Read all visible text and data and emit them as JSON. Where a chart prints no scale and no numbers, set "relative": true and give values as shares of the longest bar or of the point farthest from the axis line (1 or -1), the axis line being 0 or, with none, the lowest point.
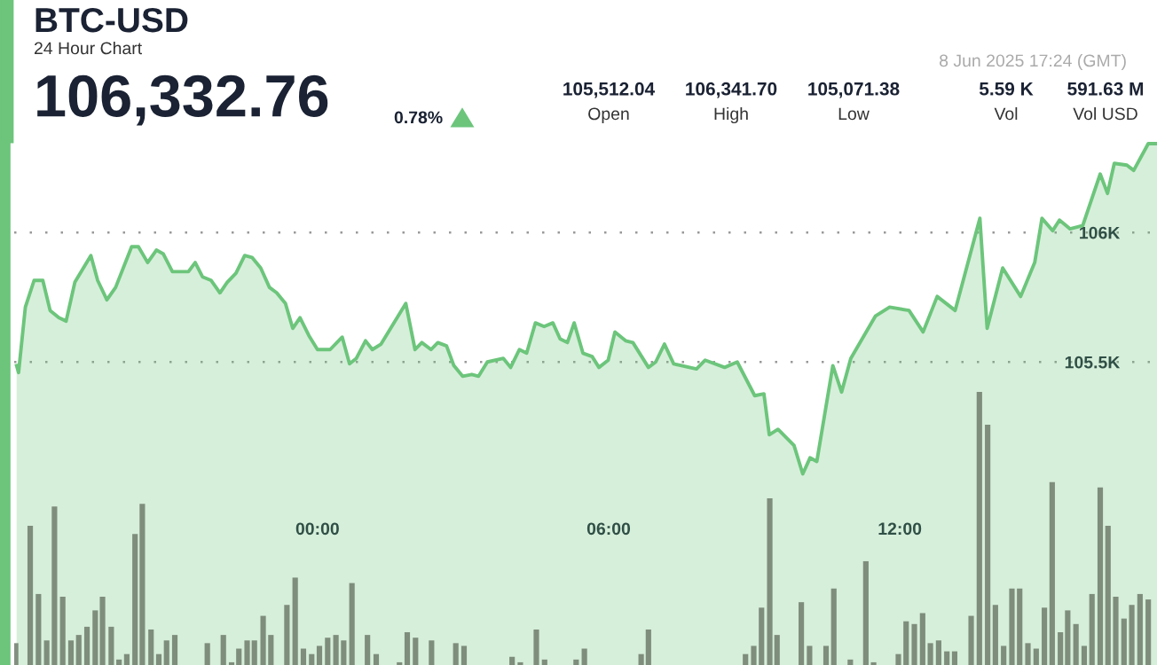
{
  "chart_data": [
    {
      "type": "area",
      "title": "BTC-USD",
      "subtitle": "24 Hour Chart",
      "annotations": [
        "106,332.76",
        "0.78%",
        "105,512.04",
        "Open",
        "106,341.70",
        "High",
        "105,071.38",
        "Low",
        "5.59 K",
        "Vol",
        "591.63 M",
        "Vol USD",
        "8 Jun 2025 17:24 (GMT)"
      ],
      "x": [
        -6.2,
        -6.16,
        -6.02,
        -5.84,
        -5.66,
        -5.51,
        -5.33,
        -5.18,
        -5.0,
        -4.67,
        -4.53,
        -4.34,
        -4.16,
        -3.83,
        -3.69,
        -3.5,
        -3.32,
        -3.18,
        -2.99,
        -2.66,
        -2.52,
        -2.37,
        -2.19,
        -2.01,
        -1.86,
        -1.68,
        -1.5,
        -1.35,
        -1.17,
        -0.99,
        -0.84,
        -0.66,
        -0.51,
        -0.36,
        -0.18,
        0.0,
        0.26,
        0.51,
        0.66,
        0.8,
        0.99,
        1.13,
        1.31,
        1.82,
        2.01,
        2.15,
        2.34,
        2.48,
        2.66,
        2.81,
        2.99,
        3.18,
        3.32,
        3.5,
        3.83,
        3.98,
        4.16,
        4.31,
        4.49,
        4.67,
        4.85,
        5.0,
        5.15,
        5.29,
        5.47,
        5.66,
        5.8,
        5.99,
        6.13,
        6.35,
        6.5,
        6.82,
        6.97,
        7.15,
        7.34,
        7.81,
        7.99,
        8.39,
        8.65,
        9.01,
        9.2,
        9.31,
        9.49,
        9.82,
        10.0,
        10.15,
        10.29,
        10.62,
        10.8,
        10.99,
        11.5,
        11.79,
        12.19,
        12.48,
        12.77,
        13.14,
        13.65,
        13.8,
        14.12,
        14.49,
        14.78,
        14.93,
        15.15,
        15.29,
        15.51,
        15.77,
        16.13,
        16.28,
        16.42,
        16.68,
        16.82,
        17.12,
        17.3
      ],
      "series": [
        {
          "color": "#6cc57b",
          "values": [
            105486,
            105459,
            105712,
            105815,
            105815,
            105699,
            105671,
            105658,
            105808,
            105911,
            105815,
            105740,
            105788,
            105945,
            105945,
            105884,
            105932,
            105918,
            105849,
            105849,
            105884,
            105829,
            105815,
            105767,
            105808,
            105843,
            105911,
            105904,
            105863,
            105788,
            105767,
            105726,
            105630,
            105671,
            105603,
            105548,
            105548,
            105596,
            105493,
            105514,
            105582,
            105548,
            105569,
            105726,
            105548,
            105575,
            105548,
            105575,
            105562,
            105486,
            105445,
            105452,
            105445,
            105500,
            105514,
            105479,
            105548,
            105534,
            105651,
            105637,
            105651,
            105589,
            105575,
            105651,
            105534,
            105521,
            105479,
            105507,
            105616,
            105582,
            105575,
            105479,
            105500,
            105569,
            105493,
            105473,
            105507,
            105479,
            105500,
            105370,
            105377,
            105219,
            105240,
            105178,
            105068,
            105130,
            105116,
            105486,
            105384,
            105514,
            105678,
            105712,
            105699,
            105616,
            105753,
            105699,
            106055,
            105630,
            105863,
            105753,
            105884,
            106055,
            106007,
            106048,
            106014,
            106027,
            106226,
            106151,
            106267,
            106260,
            106240,
            106343,
            106343
          ]
        }
      ],
      "xlim": [
        -6.25,
        17.3
      ],
      "ylim": [
        104330,
        106350
      ],
      "xticks": [
        {
          "value": 0,
          "label": "00:00"
        },
        {
          "value": 6,
          "label": "06:00"
        },
        {
          "value": 12,
          "label": "12:00"
        }
      ],
      "yticks": [
        {
          "value": 105500,
          "label": "105.5K"
        },
        {
          "value": 106000,
          "label": "106K"
        }
      ],
      "grid": "y"
    },
    {
      "type": "bar",
      "relative": true,
      "xlim": [
        -6.25,
        17.3
      ],
      "x": [
        -6.22,
        -5.92,
        -5.75,
        -5.58,
        -5.42,
        -5.25,
        -5.08,
        -4.92,
        -4.75,
        -4.58,
        -4.43,
        -4.25,
        -4.09,
        -3.93,
        -3.76,
        -3.61,
        -3.43,
        -3.27,
        -3.11,
        -2.94,
        -2.27,
        -1.94,
        -1.77,
        -1.62,
        -1.45,
        -1.3,
        -1.12,
        -0.96,
        -0.63,
        -0.46,
        -0.29,
        -0.12,
        0.04,
        0.21,
        0.38,
        0.54,
        0.71,
        1.03,
        1.21,
        1.69,
        1.85,
        2.02,
        2.35,
        2.85,
        3.02,
        4.01,
        4.18,
        4.51,
        4.68,
        5.33,
        5.5,
        6.67,
        6.82,
        8.82,
        8.99,
        9.15,
        9.32,
        9.47,
        9.97,
        10.14,
        10.48,
        10.64,
        10.98,
        11.3,
        11.46,
        11.97,
        12.13,
        12.3,
        12.47,
        12.63,
        12.8,
        12.97,
        13.13,
        13.47,
        13.64,
        13.81,
        13.97,
        14.14,
        14.31,
        14.47,
        14.64,
        14.81,
        14.98,
        15.14,
        15.31,
        15.46,
        15.63,
        15.8,
        15.96,
        16.13,
        16.29,
        16.45,
        16.62,
        16.78,
        16.95,
        17.12
      ],
      "series": [
        {
          "color": "#6e7b6b",
          "values": [
            0.08,
            0.51,
            0.26,
            0.09,
            0.58,
            0.25,
            0.09,
            0.11,
            0.14,
            0.2,
            0.25,
            0.14,
            0.02,
            0.04,
            0.48,
            0.59,
            0.13,
            0.04,
            0.09,
            0.11,
            0.08,
            0.11,
            0.01,
            0.06,
            0.09,
            0.09,
            0.18,
            0.11,
            0.22,
            0.32,
            0.06,
            0.04,
            0.07,
            0.1,
            0.11,
            0.09,
            0.3,
            0.11,
            0.04,
            0.01,
            0.12,
            0.1,
            0.09,
            0.08,
            0.07,
            0.03,
            0.01,
            0.13,
            0.02,
            0.02,
            0.06,
            0.04,
            0.13,
            0.04,
            0.07,
            0.21,
            0.61,
            0.11,
            0.23,
            0.07,
            0.07,
            0.28,
            0.02,
            0.38,
            0.01,
            0.04,
            0.16,
            0.15,
            0.19,
            0.08,
            0.09,
            0.05,
            0.05,
            0.18,
            1,
            0.88,
            0.22,
            0.07,
            0.28,
            0.28,
            0.08,
            0.06,
            0.21,
            0.67,
            0.12,
            0.2,
            0.15,
            0.07,
            0.26,
            0.65,
            0.51,
            0.25,
            0.17,
            0.22,
            0.26,
            0.24
          ]
        }
      ]
    }
  ]
}
